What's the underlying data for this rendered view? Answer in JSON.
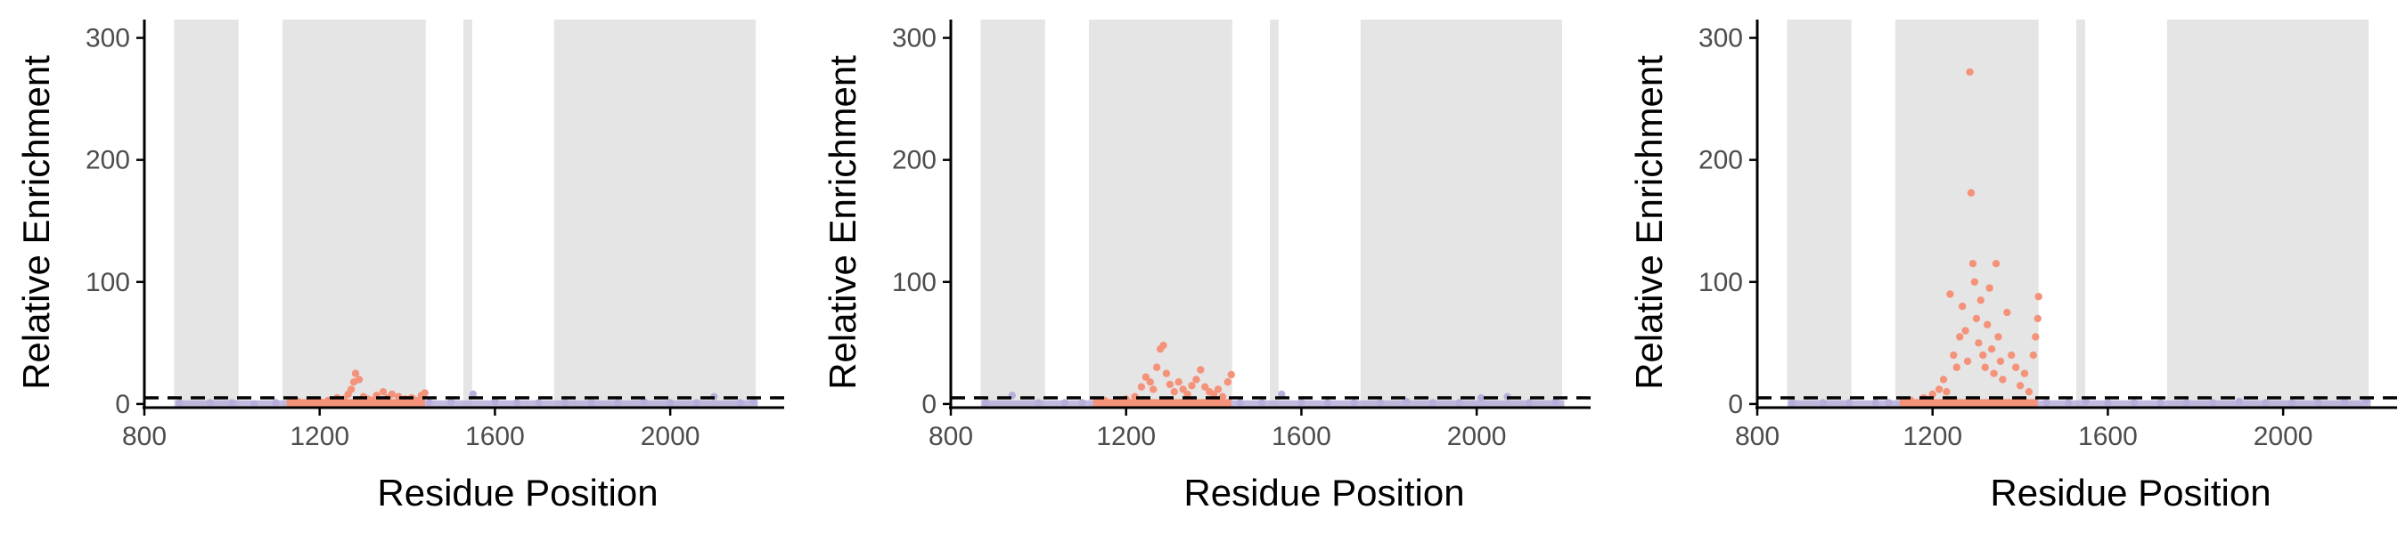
{
  "colors": {
    "band": "#e5e5e5",
    "enriched": "#f4937a",
    "background_points": "#b9aedb",
    "axis": "#000000",
    "threshold": "#000000"
  },
  "chart_data": [
    {
      "type": "scatter",
      "title": "",
      "xlabel": "Residue Position",
      "ylabel": "Relative Enrichment",
      "xlim": [
        800,
        2260
      ],
      "ylim": [
        -3,
        315
      ],
      "xticks": [
        "800",
        "1200",
        "1600",
        "2000"
      ],
      "yticks": [
        "0",
        "100",
        "200",
        "300"
      ],
      "threshold": 5,
      "bands": [
        [
          868,
          1015
        ],
        [
          1115,
          1442
        ],
        [
          1528,
          1548
        ],
        [
          1735,
          2195
        ]
      ],
      "series": [
        {
          "color": "enriched",
          "points": [
            [
              1150,
              2
            ],
            [
              1180,
              3
            ],
            [
              1200,
              2
            ],
            [
              1220,
              3
            ],
            [
              1240,
              5
            ],
            [
              1255,
              4
            ],
            [
              1265,
              8
            ],
            [
              1272,
              12
            ],
            [
              1278,
              18
            ],
            [
              1282,
              25
            ],
            [
              1290,
              20
            ],
            [
              1300,
              6
            ],
            [
              1310,
              4
            ],
            [
              1320,
              3
            ],
            [
              1330,
              7
            ],
            [
              1345,
              10
            ],
            [
              1355,
              5
            ],
            [
              1365,
              8
            ],
            [
              1380,
              6
            ],
            [
              1395,
              4
            ],
            [
              1410,
              5
            ],
            [
              1420,
              3
            ],
            [
              1432,
              7
            ],
            [
              1440,
              9
            ]
          ]
        },
        {
          "color": "background_points",
          "points": [
            [
              880,
              1
            ],
            [
              950,
              1
            ],
            [
              1000,
              1
            ],
            [
              1050,
              0
            ],
            [
              1100,
              1
            ],
            [
              1450,
              1
            ],
            [
              1500,
              2
            ],
            [
              1550,
              8
            ],
            [
              1600,
              2
            ],
            [
              1650,
              1
            ],
            [
              1700,
              1
            ],
            [
              1760,
              1
            ],
            [
              1820,
              1
            ],
            [
              1880,
              1
            ],
            [
              1940,
              2
            ],
            [
              2000,
              1
            ],
            [
              2060,
              1
            ],
            [
              2100,
              6
            ],
            [
              2160,
              1
            ],
            [
              2190,
              2
            ]
          ]
        }
      ]
    },
    {
      "type": "scatter",
      "title": "",
      "xlabel": "Residue Position",
      "ylabel": "Relative Enrichment",
      "xlim": [
        800,
        2260
      ],
      "ylim": [
        -3,
        315
      ],
      "xticks": [
        "800",
        "1200",
        "1600",
        "2000"
      ],
      "yticks": [
        "0",
        "100",
        "200",
        "300"
      ],
      "threshold": 5,
      "bands": [
        [
          868,
          1015
        ],
        [
          1115,
          1442
        ],
        [
          1528,
          1548
        ],
        [
          1735,
          2195
        ]
      ],
      "series": [
        {
          "color": "enriched",
          "points": [
            [
              1150,
              3
            ],
            [
              1180,
              2
            ],
            [
              1200,
              4
            ],
            [
              1220,
              6
            ],
            [
              1235,
              14
            ],
            [
              1245,
              22
            ],
            [
              1255,
              18
            ],
            [
              1262,
              12
            ],
            [
              1270,
              30
            ],
            [
              1278,
              45
            ],
            [
              1285,
              48
            ],
            [
              1292,
              25
            ],
            [
              1300,
              16
            ],
            [
              1310,
              10
            ],
            [
              1320,
              18
            ],
            [
              1330,
              12
            ],
            [
              1340,
              8
            ],
            [
              1350,
              15
            ],
            [
              1360,
              20
            ],
            [
              1370,
              28
            ],
            [
              1380,
              14
            ],
            [
              1390,
              10
            ],
            [
              1400,
              8
            ],
            [
              1410,
              12
            ],
            [
              1420,
              6
            ],
            [
              1432,
              18
            ],
            [
              1440,
              24
            ]
          ]
        },
        {
          "color": "background_points",
          "points": [
            [
              880,
              1
            ],
            [
              940,
              7
            ],
            [
              1000,
              1
            ],
            [
              1060,
              1
            ],
            [
              1100,
              1
            ],
            [
              1460,
              1
            ],
            [
              1510,
              1
            ],
            [
              1555,
              8
            ],
            [
              1600,
              1
            ],
            [
              1660,
              1
            ],
            [
              1720,
              1
            ],
            [
              1780,
              1
            ],
            [
              1840,
              2
            ],
            [
              1900,
              1
            ],
            [
              1960,
              1
            ],
            [
              2010,
              5
            ],
            [
              2070,
              6
            ],
            [
              2120,
              1
            ],
            [
              2180,
              2
            ]
          ]
        }
      ]
    },
    {
      "type": "scatter",
      "title": "",
      "xlabel": "Residue Position",
      "ylabel": "Relative Enrichment",
      "xlim": [
        800,
        2260
      ],
      "ylim": [
        -3,
        315
      ],
      "xticks": [
        "800",
        "1200",
        "1600",
        "2000"
      ],
      "yticks": [
        "0",
        "100",
        "200",
        "300"
      ],
      "threshold": 5,
      "bands": [
        [
          868,
          1015
        ],
        [
          1115,
          1442
        ],
        [
          1528,
          1548
        ],
        [
          1735,
          2195
        ]
      ],
      "series": [
        {
          "color": "enriched",
          "points": [
            [
              1150,
              3
            ],
            [
              1180,
              5
            ],
            [
              1200,
              8
            ],
            [
              1215,
              12
            ],
            [
              1225,
              20
            ],
            [
              1232,
              10
            ],
            [
              1240,
              90
            ],
            [
              1248,
              40
            ],
            [
              1255,
              30
            ],
            [
              1262,
              55
            ],
            [
              1268,
              80
            ],
            [
              1275,
              60
            ],
            [
              1280,
              35
            ],
            [
              1285,
              272
            ],
            [
              1288,
              173
            ],
            [
              1292,
              115
            ],
            [
              1296,
              100
            ],
            [
              1300,
              70
            ],
            [
              1305,
              50
            ],
            [
              1310,
              85
            ],
            [
              1315,
              40
            ],
            [
              1320,
              30
            ],
            [
              1325,
              65
            ],
            [
              1330,
              95
            ],
            [
              1335,
              45
            ],
            [
              1340,
              25
            ],
            [
              1345,
              115
            ],
            [
              1350,
              55
            ],
            [
              1355,
              35
            ],
            [
              1360,
              20
            ],
            [
              1370,
              75
            ],
            [
              1380,
              40
            ],
            [
              1390,
              30
            ],
            [
              1400,
              15
            ],
            [
              1410,
              25
            ],
            [
              1420,
              10
            ],
            [
              1430,
              40
            ],
            [
              1435,
              55
            ],
            [
              1440,
              70
            ],
            [
              1442,
              88
            ]
          ]
        },
        {
          "color": "background_points",
          "points": [
            [
              880,
              1
            ],
            [
              950,
              1
            ],
            [
              1010,
              1
            ],
            [
              1070,
              1
            ],
            [
              1100,
              1
            ],
            [
              1460,
              1
            ],
            [
              1510,
              1
            ],
            [
              1550,
              2
            ],
            [
              1600,
              1
            ],
            [
              1660,
              1
            ],
            [
              1720,
              1
            ],
            [
              1780,
              1
            ],
            [
              1840,
              1
            ],
            [
              1900,
              2
            ],
            [
              1960,
              1
            ],
            [
              2020,
              1
            ],
            [
              2080,
              1
            ],
            [
              2140,
              2
            ],
            [
              2190,
              3
            ]
          ]
        }
      ]
    }
  ]
}
